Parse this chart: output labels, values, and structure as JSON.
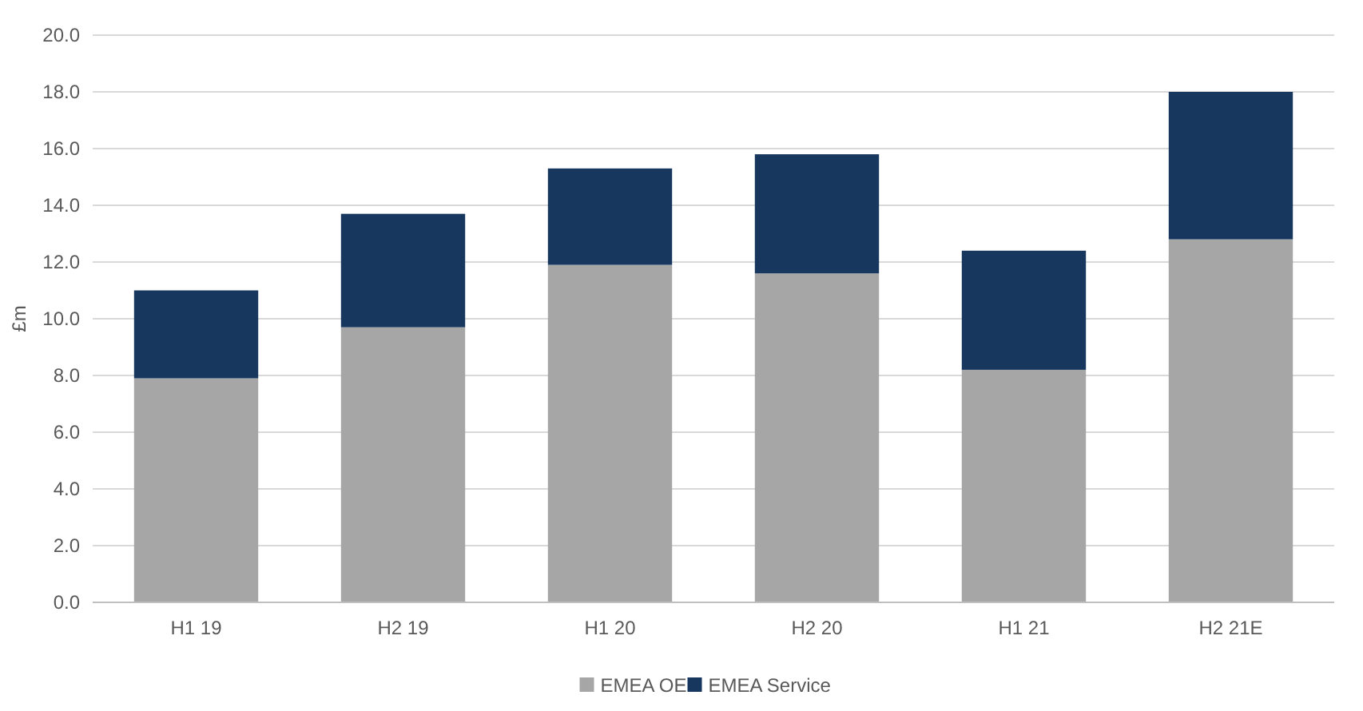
{
  "chart_data": {
    "type": "bar",
    "stacked": true,
    "ylabel": "£m",
    "categories": [
      "H1 19",
      "H2 19",
      "H1 20",
      "H2 20",
      "H1 21",
      "H2 21E"
    ],
    "series": [
      {
        "name": "EMEA OE",
        "color": "#a6a6a6",
        "values": [
          7.9,
          9.7,
          11.9,
          11.6,
          8.2,
          12.8
        ]
      },
      {
        "name": "EMEA Service",
        "color": "#17375e",
        "values": [
          3.1,
          4.0,
          3.4,
          4.2,
          4.2,
          5.2
        ]
      }
    ],
    "ylim": [
      0,
      20
    ],
    "yticks": [
      {
        "value": 0,
        "label": "0.0"
      },
      {
        "value": 2,
        "label": "2.0"
      },
      {
        "value": 4,
        "label": "4.0"
      },
      {
        "value": 6,
        "label": "6.0"
      },
      {
        "value": 8,
        "label": "8.0"
      },
      {
        "value": 10,
        "label": "10.0"
      },
      {
        "value": 12,
        "label": "12.0"
      },
      {
        "value": 14,
        "label": "14.0"
      },
      {
        "value": 16,
        "label": "16.0"
      },
      {
        "value": 18,
        "label": "18.0"
      },
      {
        "value": 20,
        "label": "20.0"
      }
    ],
    "grid": "y",
    "legend": "bottom"
  }
}
